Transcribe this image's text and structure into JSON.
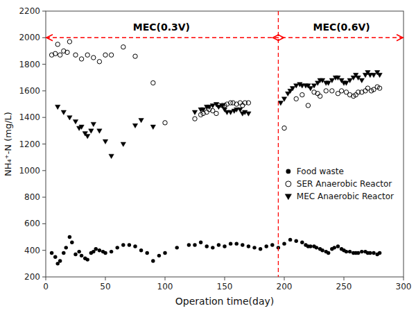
{
  "chart_data": {
    "type": "scatter",
    "xlabel": "Operation time(day)",
    "ylabel": "NH₄⁺-N (mg/L)",
    "xlim": [
      0,
      300
    ],
    "ylim": [
      200,
      2200
    ],
    "xticks": [
      0,
      50,
      100,
      150,
      200,
      250,
      300
    ],
    "yticks": [
      200,
      400,
      600,
      800,
      1000,
      1200,
      1400,
      1600,
      1800,
      2000,
      2200
    ],
    "grid": false,
    "legend": "right",
    "reference_lines": [
      {
        "axis": "x",
        "value": 195,
        "color": "red",
        "line_style": "dashed"
      },
      {
        "axis": "y",
        "value": 2000,
        "color": "red",
        "line_style": "dashed"
      }
    ],
    "annotations": [
      {
        "text": "MEC(0.3V)",
        "x": 97,
        "y": 2055
      },
      {
        "text": "MEC(0.6V)",
        "x": 248,
        "y": 2055
      }
    ],
    "series": [
      {
        "name": "Food waste",
        "color": "black",
        "marker": "circle",
        "x": [
          5,
          8,
          10,
          12,
          15,
          17,
          20,
          22,
          25,
          28,
          30,
          33,
          35,
          38,
          40,
          42,
          45,
          48,
          50,
          55,
          60,
          65,
          70,
          75,
          80,
          85,
          90,
          95,
          100,
          110,
          120,
          125,
          130,
          135,
          140,
          145,
          150,
          155,
          160,
          165,
          170,
          175,
          180,
          185,
          190,
          195,
          200,
          205,
          210,
          215,
          218,
          220,
          222,
          225,
          227,
          230,
          232,
          235,
          237,
          240,
          242,
          245,
          248,
          250,
          252,
          255,
          258,
          260,
          262,
          265,
          268,
          270,
          272,
          275,
          278,
          280
        ],
        "values": [
          380,
          350,
          300,
          320,
          380,
          420,
          500,
          460,
          370,
          390,
          360,
          340,
          330,
          380,
          390,
          410,
          400,
          390,
          380,
          390,
          420,
          440,
          440,
          430,
          400,
          380,
          320,
          360,
          380,
          420,
          440,
          440,
          460,
          430,
          420,
          440,
          430,
          450,
          450,
          440,
          430,
          420,
          410,
          430,
          440,
          420,
          450,
          480,
          470,
          460,
          440,
          430,
          430,
          430,
          420,
          410,
          400,
          390,
          380,
          410,
          420,
          430,
          410,
          400,
          390,
          390,
          380,
          380,
          380,
          390,
          390,
          380,
          380,
          380,
          370,
          380
        ]
      },
      {
        "name": "SER Anaerobic Reactor",
        "color": "black",
        "marker": "open-circle",
        "x": [
          5,
          8,
          10,
          12,
          15,
          18,
          20,
          25,
          30,
          35,
          40,
          45,
          50,
          55,
          65,
          75,
          90,
          100,
          125,
          130,
          132,
          135,
          137,
          140,
          143,
          145,
          148,
          150,
          152,
          155,
          157,
          160,
          163,
          165,
          167,
          170,
          200,
          210,
          215,
          220,
          225,
          228,
          230,
          235,
          240,
          245,
          248,
          252,
          255,
          258,
          260,
          262,
          265,
          268,
          270,
          273,
          275,
          278,
          280
        ],
        "values": [
          1870,
          1880,
          1950,
          1870,
          1900,
          1890,
          1970,
          1870,
          1840,
          1870,
          1850,
          1820,
          1870,
          1870,
          1930,
          1860,
          1660,
          1360,
          1390,
          1420,
          1430,
          1440,
          1460,
          1450,
          1430,
          1490,
          1490,
          1490,
          1500,
          1510,
          1510,
          1500,
          1510,
          1490,
          1510,
          1510,
          1320,
          1540,
          1570,
          1490,
          1590,
          1580,
          1560,
          1600,
          1600,
          1580,
          1600,
          1590,
          1570,
          1560,
          1570,
          1590,
          1590,
          1600,
          1620,
          1600,
          1610,
          1630,
          1620
        ]
      },
      {
        "name": "MEC Anaerobic Reactor",
        "color": "black",
        "marker": "triangle-down",
        "x": [
          10,
          15,
          20,
          25,
          28,
          30,
          33,
          35,
          38,
          40,
          45,
          50,
          55,
          65,
          75,
          80,
          90,
          125,
          130,
          132,
          135,
          137,
          140,
          143,
          145,
          148,
          150,
          152,
          155,
          158,
          160,
          163,
          165,
          167,
          170,
          197,
          200,
          203,
          205,
          207,
          210,
          213,
          215,
          218,
          220,
          222,
          225,
          228,
          230,
          232,
          235,
          237,
          240,
          243,
          245,
          248,
          250,
          252,
          255,
          258,
          260,
          262,
          265,
          268,
          270,
          272,
          275,
          278,
          280
        ],
        "values": [
          1480,
          1440,
          1400,
          1370,
          1320,
          1330,
          1280,
          1260,
          1300,
          1350,
          1300,
          1220,
          1110,
          1200,
          1340,
          1380,
          1330,
          1440,
          1460,
          1460,
          1480,
          1480,
          1490,
          1500,
          1480,
          1490,
          1460,
          1440,
          1440,
          1450,
          1460,
          1460,
          1430,
          1440,
          1430,
          1510,
          1540,
          1580,
          1600,
          1620,
          1640,
          1650,
          1640,
          1640,
          1640,
          1620,
          1640,
          1660,
          1680,
          1680,
          1660,
          1660,
          1680,
          1700,
          1700,
          1680,
          1660,
          1660,
          1680,
          1700,
          1720,
          1700,
          1680,
          1720,
          1740,
          1720,
          1720,
          1740,
          1720
        ]
      }
    ]
  }
}
